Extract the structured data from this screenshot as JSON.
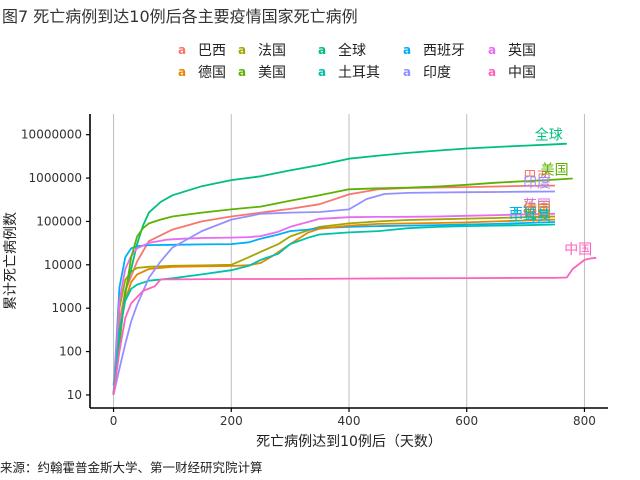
{
  "figure_title": "图7 死亡病例到达10例后各主要疫情国家死亡病例",
  "source_note": "来源：约翰霍普金斯大学、第一财经研究院计算",
  "chart_data": {
    "type": "line",
    "xlabel": "死亡病例达到10例后（天数）",
    "ylabel": "累计死亡病例数",
    "xlim": [
      -40,
      840
    ],
    "ylim": [
      5,
      30000000
    ],
    "y_scale": "log10",
    "x_ticks": [
      0,
      200,
      400,
      600,
      800
    ],
    "x_tick_labels": [
      "0",
      "200",
      "400",
      "600",
      "800"
    ],
    "y_ticks": [
      10,
      100,
      1000,
      10000,
      100000,
      1000000,
      10000000
    ],
    "y_tick_labels": [
      "10",
      "100",
      "1000",
      "10000",
      "100000",
      "1000000",
      "10000000"
    ],
    "grid": "vertical-major",
    "legend_position": "top",
    "legend_symbol": "a",
    "series": [
      {
        "name": "巴西",
        "color": "#F8766D",
        "label": "巴西",
        "x": [
          0,
          10,
          20,
          40,
          60,
          100,
          150,
          200,
          250,
          300,
          350,
          400,
          450,
          500,
          550,
          600,
          650,
          700,
          750
        ],
        "y": [
          10,
          500,
          2500,
          12000,
          35000,
          65000,
          100000,
          130000,
          160000,
          195000,
          250000,
          420000,
          550000,
          590000,
          605000,
          620000,
          640000,
          660000,
          670000
        ]
      },
      {
        "name": "法国",
        "color": "#A3A500",
        "label": "法国",
        "x": [
          0,
          10,
          20,
          30,
          40,
          60,
          100,
          150,
          200,
          230,
          250,
          280,
          300,
          330,
          350,
          400,
          450,
          500,
          550,
          600,
          650,
          700,
          750
        ],
        "y": [
          10,
          1000,
          4500,
          7000,
          8500,
          9000,
          9500,
          9700,
          10000,
          15000,
          20000,
          30000,
          45000,
          62000,
          75000,
          90000,
          100000,
          108000,
          112000,
          116000,
          120000,
          125000,
          130000
        ]
      },
      {
        "name": "全球",
        "color": "#00BF7D",
        "label": "全球",
        "x": [
          0,
          5,
          10,
          15,
          20,
          30,
          40,
          50,
          60,
          80,
          100,
          150,
          200,
          250,
          300,
          350,
          400,
          450,
          500,
          550,
          600,
          650,
          700,
          750,
          770
        ],
        "y": [
          17,
          50,
          150,
          600,
          2500,
          8000,
          30000,
          80000,
          160000,
          280000,
          400000,
          650000,
          900000,
          1100000,
          1500000,
          2000000,
          2800000,
          3300000,
          3800000,
          4300000,
          4800000,
          5200000,
          5600000,
          6000000,
          6200000
        ]
      },
      {
        "name": "西班牙",
        "color": "#00B0F6",
        "label": "西班牙",
        "x": [
          0,
          10,
          20,
          30,
          40,
          60,
          100,
          150,
          200,
          230,
          250,
          280,
          300,
          330,
          350,
          400,
          450,
          500,
          550,
          600,
          650,
          700,
          750
        ],
        "y": [
          10,
          3000,
          15000,
          24000,
          27000,
          28500,
          29000,
          29500,
          30000,
          33000,
          40000,
          50000,
          60000,
          65000,
          70000,
          75000,
          78000,
          80000,
          82000,
          85000,
          88000,
          92000,
          97000
        ]
      },
      {
        "name": "英国",
        "color": "#E76BF3",
        "label": "英国",
        "x": [
          0,
          10,
          20,
          30,
          40,
          60,
          90,
          120,
          150,
          200,
          230,
          250,
          280,
          300,
          350,
          400,
          450,
          500,
          550,
          600,
          650,
          700,
          750
        ],
        "y": [
          10,
          1500,
          8000,
          16000,
          24000,
          32000,
          38000,
          40000,
          41500,
          42500,
          43500,
          46000,
          58000,
          75000,
          115000,
          125000,
          127000,
          128000,
          130000,
          135000,
          140000,
          145000,
          150000
        ]
      },
      {
        "name": "德国",
        "color": "#E58700",
        "label": "德国",
        "x": [
          0,
          10,
          20,
          30,
          40,
          60,
          100,
          150,
          200,
          230,
          250,
          270,
          300,
          330,
          350,
          400,
          450,
          500,
          550,
          600,
          650,
          700,
          750
        ],
        "y": [
          10,
          300,
          1500,
          4000,
          6000,
          8000,
          9000,
          9200,
          9400,
          9800,
          11000,
          16000,
          30000,
          55000,
          68000,
          80000,
          88000,
          90000,
          92000,
          95000,
          100000,
          105000,
          110000
        ]
      },
      {
        "name": "美国",
        "color": "#5BB300",
        "label": "美国",
        "x": [
          0,
          10,
          20,
          30,
          40,
          50,
          60,
          80,
          100,
          150,
          200,
          250,
          300,
          350,
          400,
          450,
          500,
          550,
          600,
          650,
          700,
          750,
          780
        ],
        "y": [
          10,
          200,
          2000,
          15000,
          45000,
          70000,
          90000,
          110000,
          130000,
          160000,
          190000,
          220000,
          300000,
          400000,
          550000,
          580000,
          600000,
          640000,
          700000,
          780000,
          850000,
          920000,
          980000
        ]
      },
      {
        "name": "土耳其",
        "color": "#00C1AA",
        "label": "土耳其",
        "x": [
          0,
          10,
          20,
          30,
          40,
          60,
          100,
          150,
          200,
          230,
          250,
          280,
          300,
          330,
          350,
          400,
          450,
          500,
          550,
          600,
          650,
          700,
          750
        ],
        "y": [
          10,
          300,
          1500,
          2800,
          3500,
          4300,
          4900,
          6000,
          7500,
          9500,
          13000,
          18000,
          30000,
          42000,
          50000,
          56000,
          60000,
          70000,
          75000,
          78000,
          80000,
          82000,
          85000
        ]
      },
      {
        "name": "印度",
        "color": "#9590FF",
        "label": "印度",
        "x": [
          0,
          10,
          20,
          30,
          40,
          60,
          80,
          100,
          150,
          200,
          250,
          300,
          350,
          400,
          430,
          460,
          500,
          550,
          600,
          650,
          700,
          750
        ],
        "y": [
          10,
          40,
          150,
          500,
          1200,
          5000,
          12000,
          25000,
          60000,
          110000,
          150000,
          160000,
          165000,
          190000,
          330000,
          430000,
          455000,
          465000,
          472000,
          478000,
          485000,
          490000
        ]
      },
      {
        "name": "中国",
        "color": "#FF62BC",
        "label": "中国",
        "x": [
          0,
          10,
          20,
          30,
          50,
          70,
          80,
          100,
          200,
          300,
          400,
          500,
          600,
          700,
          750,
          770,
          780,
          800,
          810,
          820
        ],
        "y": [
          10,
          100,
          600,
          1300,
          2500,
          3200,
          4600,
          4600,
          4700,
          4700,
          4800,
          4900,
          4950,
          5000,
          5000,
          5100,
          8000,
          13000,
          14000,
          14500
        ]
      }
    ]
  }
}
